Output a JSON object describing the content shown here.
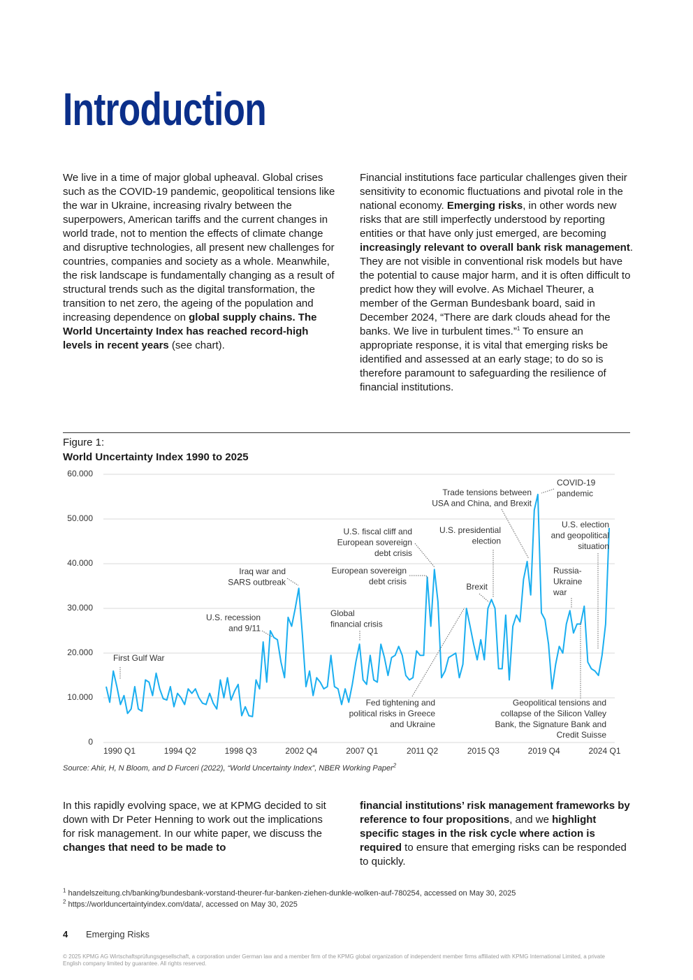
{
  "header": {
    "title": "Introduction"
  },
  "intro": {
    "left": [
      "We live in a time of major global upheaval. Global crises such as the COVID-19 pandemic, geopolitical tensions like the war in Ukraine, increasing rivalry between the superpowers, American tariffs and the current changes in world trade, not to mention the effects of climate change and disruptive technologies, all present new challenges for countries, companies and society as a whole. Meanwhile, the risk landscape is fundamentally changing as a result of structural trends such as the digital transformation, the transition to net zero, the ageing of the population and increasing dependence on ",
      "global supply chains. The World Uncertainty Index has reached record-high levels in recent years",
      " (see chart)."
    ],
    "right": [
      "Financial institutions face particular challenges given their sensitivity to economic fluctuations and pivotal role in the national economy. ",
      "Emerging risks",
      ", in other words new risks that are still imperfectly understood by reporting entities or that have only just emerged, are becoming ",
      "increasingly relevant to overall bank risk management",
      ". They are not visible in conventional risk models but have the potential to cause major harm, and it is often difficult to predict how they will evolve. As Michael Theurer, a member of the German Bundesbank board, said in December 2024, “There are dark clouds ahead for the banks. We live in turbulent times.”",
      "1",
      " To ensure an appropriate response, it is vital that emerging risks be identified and assessed at an early stage; to do so is therefore paramount to safeguarding the resilience of financial institutions."
    ]
  },
  "figure": {
    "label": "Figure 1:",
    "source": "Source: Ahir, H, N Bloom, and D Furceri (2022), “World Uncertainty Index”, NBER Working Paper",
    "source_note": "2"
  },
  "chart_data": {
    "type": "line",
    "title": "World Uncertainty Index 1990 to 2025",
    "categories": [
      "1990 Q1",
      null,
      null,
      null,
      null,
      null,
      null,
      null,
      null,
      null,
      null,
      null,
      null,
      null,
      null,
      null,
      null,
      "1994 Q2",
      null,
      null,
      null,
      null,
      null,
      null,
      null,
      null,
      null,
      null,
      null,
      null,
      null,
      null,
      null,
      null,
      "1998 Q3",
      null,
      null,
      null,
      null,
      null,
      null,
      null,
      null,
      null,
      null,
      null,
      null,
      null,
      null,
      null,
      null,
      "2002 Q4",
      null,
      null,
      null,
      null,
      null,
      null,
      null,
      null,
      null,
      null,
      null,
      null,
      null,
      null,
      null,
      null,
      "2007 Q1",
      null,
      null,
      null,
      null,
      null,
      null,
      null,
      null,
      null,
      null,
      null,
      null,
      null,
      null,
      null,
      null,
      "2011 Q2",
      null,
      null,
      null,
      null,
      null,
      null,
      null,
      null,
      null,
      null,
      null,
      null,
      null,
      null,
      null,
      null,
      "2015 Q3",
      null,
      null,
      null,
      null,
      null,
      null,
      null,
      null,
      null,
      null,
      null,
      null,
      null,
      null,
      null,
      null,
      "2019 Q4",
      null,
      null,
      null,
      null,
      null,
      null,
      null,
      null,
      null,
      null,
      null,
      null,
      null,
      null,
      null,
      null,
      "2024 Q1",
      null,
      null,
      null,
      null,
      null
    ],
    "values": [
      12500,
      9000,
      16000,
      12500,
      8500,
      10500,
      6500,
      7500,
      12500,
      7500,
      7000,
      14000,
      13500,
      10500,
      15500,
      12000,
      9800,
      9500,
      12500,
      8000,
      11000,
      10000,
      8500,
      12000,
      11000,
      12000,
      10000,
      8800,
      8500,
      11000,
      8800,
      7500,
      14000,
      10000,
      14500,
      9500,
      11500,
      13000,
      6000,
      8000,
      6000,
      5800,
      14000,
      12000,
      22500,
      13500,
      25000,
      23500,
      23000,
      18000,
      14500,
      28000,
      26000,
      30000,
      34500,
      24000,
      12500,
      16000,
      10500,
      14500,
      13500,
      12000,
      12500,
      19500,
      12500,
      12000,
      8500,
      12000,
      9000,
      13000,
      18000,
      22000,
      14000,
      13000,
      19500,
      14000,
      13500,
      22000,
      19000,
      15000,
      19000,
      19500,
      21500,
      19500,
      15000,
      14000,
      14500,
      20500,
      19500,
      19500,
      37000,
      26000,
      38700,
      31500,
      14500,
      16000,
      19000,
      19500,
      20000,
      14500,
      17500,
      30000,
      26000,
      22000,
      18500,
      23000,
      18500,
      30000,
      32000,
      30000,
      16500,
      16500,
      28500,
      14000,
      26000,
      28500,
      27000,
      36500,
      40500,
      33000,
      52000,
      55500,
      29000,
      27500,
      22000,
      12000,
      17500,
      21500,
      20000,
      26500,
      29500,
      24500,
      26500,
      26500,
      30500,
      18000,
      16500,
      16000,
      15000,
      19500,
      26500,
      48000
    ],
    "color": "#1aaef0",
    "ylim": [
      0,
      60000
    ],
    "yticks": [
      0,
      {
        "value": 10000,
        "label": "10.000"
      },
      {
        "value": 20000,
        "label": "20.000"
      },
      {
        "value": 30000,
        "label": "30.000"
      },
      {
        "value": 40000,
        "label": "40.000"
      },
      {
        "value": 50000,
        "label": "50.000"
      },
      {
        "value": 60000,
        "label": "60.000"
      }
    ],
    "grid": true,
    "annotations": [
      [
        "First Gulf War"
      ],
      [
        "U.S. recession",
        "and 9/11"
      ],
      [
        "Iraq war and",
        "SARS outbreak"
      ],
      [
        "Global",
        "financial crisis"
      ],
      [
        "U.S. fiscal cliff and",
        "European sovereign",
        "debt crisis"
      ],
      [
        "European sovereign",
        "debt crisis"
      ],
      [
        "Fed tightening and",
        "political risks in Greece",
        "and Ukraine"
      ],
      [
        "Trade tensions between",
        "USA and China, and Brexit"
      ],
      [
        "U.S. presidential",
        "election"
      ],
      [
        "Brexit"
      ],
      [
        "COVID-19",
        "pandemic"
      ],
      [
        "U.S. election",
        "and geopolitical",
        "situation"
      ],
      [
        "Russia-",
        "Ukraine",
        "war"
      ],
      [
        "Geopolitical tensions and",
        "collapse of the Silicon Valley",
        "Bank, the Signature Bank and",
        "Credit Suisse"
      ]
    ]
  },
  "closing": {
    "left": [
      "In this rapidly evolving space, we at KPMG decided to sit down with Dr Peter Henning to work out the implications for risk management. In our white paper, we discuss the ",
      "changes that need to be made to"
    ],
    "right": [
      "financial institutions’ risk management frameworks by reference to four propositions",
      ", and we ",
      "highlight specific stages in the risk cycle where action is required",
      " to ensure that emerging risks can be responded to quickly."
    ]
  },
  "footnotes": [
    {
      "mark": "1",
      "text": "handelszeitung.ch/banking/bundesbank-vorstand-theurer-fur-banken-ziehen-dunkle-wolken-auf-780254, accessed on May 30, 2025"
    },
    {
      "mark": "2",
      "text": "https://worlduncertaintyindex.com/data/, accessed on May 30, 2025"
    }
  ],
  "footer": {
    "page": "4",
    "section": "Emerging Risks",
    "copyright": "© 2025 KPMG AG Wirtschaftsprüfungsgesellschaft, a corporation under German law and a member firm of the KPMG global organization of independent member firms affiliated with KPMG International Limited, a private English company limited by guarantee. All rights reserved."
  }
}
